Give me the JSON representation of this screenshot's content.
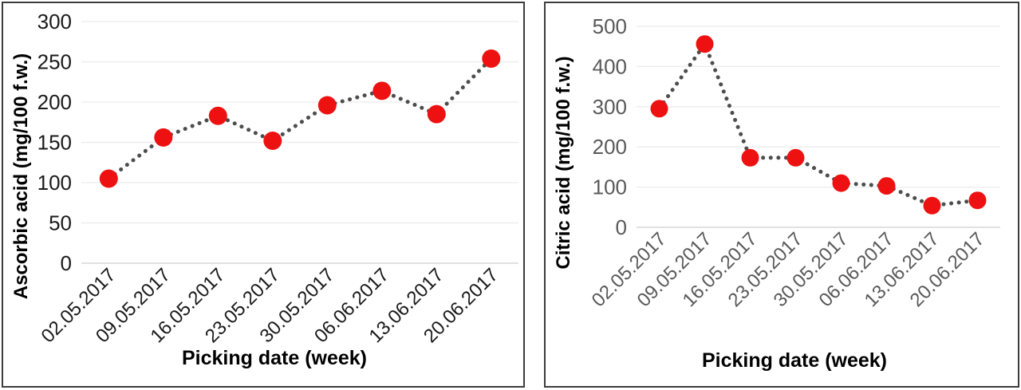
{
  "figure": {
    "background_color": "#ffffff",
    "panel_border_color": "#3c3c3c"
  },
  "chart_data": [
    {
      "type": "line",
      "name": "ascorbic-acid",
      "title": "",
      "ylabel": "Ascorbic acid (mg/100 f.w.)",
      "xlabel": "Picking date  (week)",
      "categories": [
        "02.05.2017",
        "09.05.2017",
        "16.05.2017",
        "23.05.2017",
        "30.05.2017",
        "06.06.2017",
        "13.06.2017",
        "20.06.2017"
      ],
      "values": [
        105,
        156,
        183,
        152,
        196,
        214,
        185,
        254
      ],
      "ylim": [
        0,
        300
      ],
      "yticks": [
        0,
        50,
        100,
        150,
        200,
        250,
        300
      ],
      "grid": true,
      "legend": "none",
      "line_style": "dotted",
      "marker_shape": "circle",
      "marker_color": "#ee1111",
      "line_color": "#4d4d4d",
      "grid_color": "#ececec",
      "axis_line_color": "#d7d7d7",
      "tick_label_color": "#1a1a1a",
      "axis_title_color": "#000000",
      "x_tick_rotation": 45
    },
    {
      "type": "line",
      "name": "citric-acid",
      "title": "",
      "ylabel": "Citric acid (mg/100 f.w.)",
      "xlabel": "Picking date  (week)",
      "categories": [
        "02.05.2017",
        "09.05.2017",
        "16.05.2017",
        "23.05.2017",
        "30.05.2017",
        "06.06.2017",
        "13.06.2017",
        "20.06.2017"
      ],
      "values": [
        295,
        456,
        173,
        173,
        110,
        103,
        54,
        67
      ],
      "ylim": [
        0,
        500
      ],
      "yticks": [
        0,
        100,
        200,
        300,
        400,
        500
      ],
      "grid": true,
      "legend": "none",
      "line_style": "dotted",
      "marker_shape": "circle",
      "marker_color": "#ee1111",
      "line_color": "#4d4d4d",
      "grid_color": "#ececec",
      "axis_line_color": "#d7d7d7",
      "tick_label_color": "#595959",
      "axis_title_color": "#000000",
      "x_tick_rotation": 45
    }
  ]
}
